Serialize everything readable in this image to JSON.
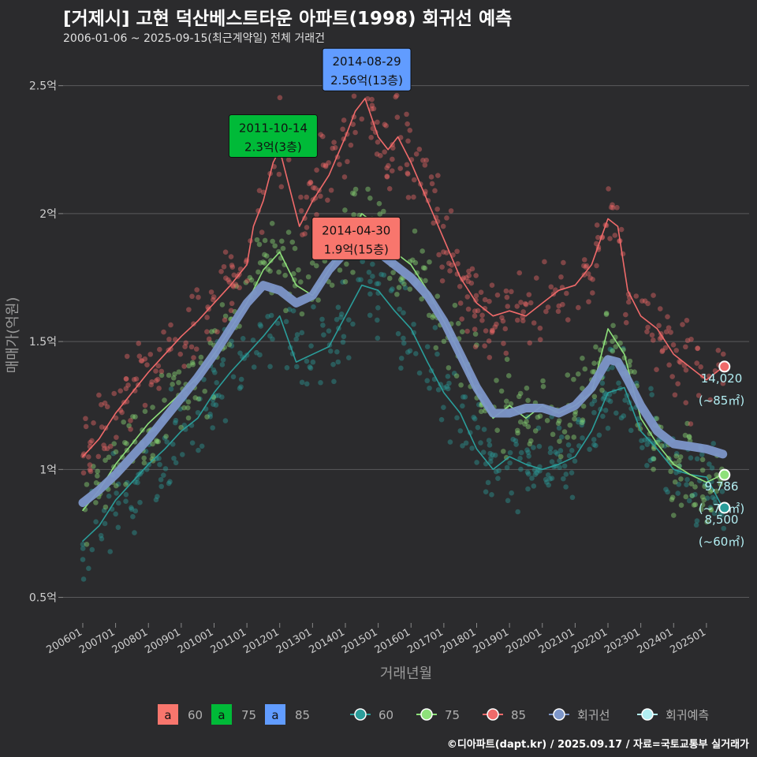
{
  "header": {
    "title": "[거제시] 고현 덕산베스트타운 아파트(1998) 회귀선 예측",
    "subtitle": "2006-01-06 ~ 2025-09-15(최근계약일) 전체 거래건"
  },
  "footer": {
    "credit": "©디아파트(dapt.kr) / 2025.09.17 / 자료=국토교통부 실거래가"
  },
  "colors": {
    "s60": "#2a9d9a",
    "s75": "#8ee07a",
    "s85": "#f06a6a",
    "trend": "#7d96c9",
    "forecast": "#b2eef2",
    "box60": "#f8766d",
    "box75": "#00ba38",
    "box85": "#619cff"
  },
  "chart_data": {
    "type": "line",
    "xlabel": "거래년월",
    "ylabel": "매매가(억원)",
    "ylim": [
      0.4,
      2.65
    ],
    "yticks": [
      {
        "v": 0.5,
        "label": "0.5억"
      },
      {
        "v": 1,
        "label": "1억"
      },
      {
        "v": 1.5,
        "label": "1.5억"
      },
      {
        "v": 2,
        "label": "2억"
      },
      {
        "v": 2.5,
        "label": "2.5억"
      }
    ],
    "xticks": [
      "200601",
      "200701",
      "200801",
      "200901",
      "201001",
      "201101",
      "201201",
      "201301",
      "201401",
      "201501",
      "201601",
      "201701",
      "201801",
      "201901",
      "202001",
      "202101",
      "202201",
      "202301",
      "202401",
      "202501"
    ],
    "xlim": [
      2005.4,
      2026.3
    ],
    "series": [
      {
        "name": "60",
        "key": "s60",
        "x": [
          2006.0,
          2006.5,
          2007.0,
          2007.5,
          2008.0,
          2008.5,
          2009.0,
          2009.5,
          2010.0,
          2010.5,
          2011.0,
          2011.5,
          2012.0,
          2012.5,
          2013.0,
          2013.5,
          2014.0,
          2014.5,
          2015.0,
          2015.5,
          2016.0,
          2016.5,
          2017.0,
          2017.5,
          2018.0,
          2018.5,
          2019.0,
          2019.5,
          2020.0,
          2020.5,
          2021.0,
          2021.5,
          2022.0,
          2022.5,
          2023.0,
          2023.5,
          2024.0,
          2024.5,
          2025.0,
          2025.5
        ],
        "y": [
          0.72,
          0.78,
          0.88,
          0.95,
          1.02,
          1.08,
          1.15,
          1.2,
          1.3,
          1.38,
          1.45,
          1.52,
          1.6,
          1.42,
          1.45,
          1.48,
          1.6,
          1.72,
          1.7,
          1.62,
          1.55,
          1.42,
          1.3,
          1.22,
          1.08,
          1.0,
          1.05,
          1.02,
          1.0,
          1.02,
          1.05,
          1.15,
          1.3,
          1.32,
          1.15,
          1.08,
          1.0,
          0.98,
          0.97,
          0.85
        ]
      },
      {
        "name": "75",
        "key": "s75",
        "x": [
          2006.0,
          2006.5,
          2007.0,
          2007.5,
          2008.0,
          2008.5,
          2009.0,
          2009.5,
          2010.0,
          2010.5,
          2011.0,
          2011.5,
          2012.0,
          2012.5,
          2013.0,
          2013.5,
          2014.0,
          2014.5,
          2015.0,
          2015.5,
          2016.0,
          2016.5,
          2017.0,
          2017.5,
          2018.0,
          2018.5,
          2019.0,
          2019.5,
          2020.0,
          2020.5,
          2021.0,
          2021.5,
          2022.0,
          2022.5,
          2023.0,
          2023.5,
          2024.0,
          2024.5,
          2025.0,
          2025.5
        ],
        "y": [
          0.84,
          0.92,
          1.02,
          1.1,
          1.18,
          1.24,
          1.3,
          1.36,
          1.45,
          1.55,
          1.65,
          1.78,
          1.85,
          1.72,
          1.68,
          1.78,
          1.88,
          2.0,
          1.95,
          1.85,
          1.8,
          1.7,
          1.58,
          1.45,
          1.3,
          1.2,
          1.25,
          1.2,
          1.25,
          1.22,
          1.25,
          1.3,
          1.55,
          1.45,
          1.2,
          1.1,
          1.02,
          0.98,
          0.95,
          0.98
        ]
      },
      {
        "name": "85",
        "key": "s85",
        "x": [
          2006.0,
          2006.5,
          2007.0,
          2007.5,
          2008.0,
          2008.5,
          2009.0,
          2009.5,
          2010.0,
          2010.5,
          2011.0,
          2011.2,
          2011.5,
          2011.8,
          2012.0,
          2012.3,
          2012.6,
          2013.0,
          2013.5,
          2014.0,
          2014.3,
          2014.6,
          2015.0,
          2015.3,
          2015.6,
          2016.0,
          2016.5,
          2017.0,
          2017.5,
          2018.0,
          2018.5,
          2019.0,
          2019.5,
          2020.0,
          2020.5,
          2021.0,
          2021.5,
          2022.0,
          2022.3,
          2022.6,
          2023.0,
          2023.5,
          2024.0,
          2024.5,
          2025.0,
          2025.5
        ],
        "y": [
          1.05,
          1.12,
          1.22,
          1.3,
          1.38,
          1.45,
          1.52,
          1.58,
          1.65,
          1.72,
          1.8,
          1.95,
          2.05,
          2.2,
          2.25,
          2.1,
          1.95,
          2.05,
          2.15,
          2.3,
          2.4,
          2.45,
          2.3,
          2.25,
          2.3,
          2.2,
          2.05,
          1.9,
          1.75,
          1.65,
          1.6,
          1.62,
          1.6,
          1.65,
          1.7,
          1.72,
          1.8,
          1.98,
          1.95,
          1.7,
          1.6,
          1.55,
          1.45,
          1.4,
          1.35,
          1.4
        ]
      },
      {
        "name": "회귀선",
        "key": "trend",
        "x": [
          2006.0,
          2006.5,
          2007.0,
          2007.5,
          2008.0,
          2008.5,
          2009.0,
          2009.5,
          2010.0,
          2010.5,
          2011.0,
          2011.5,
          2012.0,
          2012.5,
          2013.0,
          2013.5,
          2014.0,
          2014.5,
          2015.0,
          2015.5,
          2016.0,
          2016.5,
          2017.0,
          2017.5,
          2018.0,
          2018.5,
          2019.0,
          2019.5,
          2020.0,
          2020.5,
          2021.0,
          2021.5,
          2022.0,
          2022.3,
          2022.6,
          2023.0,
          2023.5,
          2024.0,
          2024.5,
          2025.0,
          2025.5
        ],
        "y": [
          0.87,
          0.92,
          0.98,
          1.05,
          1.12,
          1.2,
          1.28,
          1.36,
          1.45,
          1.55,
          1.65,
          1.72,
          1.7,
          1.65,
          1.68,
          1.78,
          1.85,
          1.88,
          1.85,
          1.8,
          1.75,
          1.68,
          1.58,
          1.45,
          1.32,
          1.22,
          1.22,
          1.24,
          1.24,
          1.22,
          1.25,
          1.32,
          1.43,
          1.42,
          1.35,
          1.25,
          1.15,
          1.1,
          1.09,
          1.08,
          1.06
        ]
      }
    ],
    "forecast": [
      {
        "name": "85",
        "value": "14,020",
        "area": "(~85㎡)",
        "x": 2025.55,
        "y": 1.402
      },
      {
        "name": "75",
        "value": "9,786",
        "area": "(~75㎡)",
        "x": 2025.55,
        "y": 0.979
      },
      {
        "name": "60",
        "value": "8,500",
        "area": "(~60㎡)",
        "x": 2025.55,
        "y": 0.85
      }
    ],
    "annotations": [
      {
        "date": "2014-08-29",
        "text": "2.56억(13층)",
        "key": "box85",
        "x": 2014.65,
        "y": 2.56
      },
      {
        "date": "2011-10-14",
        "text": "2.3억(3층)",
        "key": "box75",
        "x": 2011.8,
        "y": 2.3
      },
      {
        "date": "2014-04-30",
        "text": "1.9억(15층)",
        "key": "box60",
        "x": 2014.33,
        "y": 1.9
      }
    ],
    "legend": {
      "box_items": [
        {
          "glyph": "a",
          "label": "60",
          "key": "box60"
        },
        {
          "glyph": "a",
          "label": "75",
          "key": "box75"
        },
        {
          "glyph": "a",
          "label": "85",
          "key": "box85"
        }
      ],
      "line_items": [
        {
          "label": "60",
          "key": "s60"
        },
        {
          "label": "75",
          "key": "s75"
        },
        {
          "label": "85",
          "key": "s85"
        },
        {
          "label": "회귀선",
          "key": "trend"
        },
        {
          "label": "회귀예측",
          "key": "forecast"
        }
      ]
    },
    "grid": true
  }
}
